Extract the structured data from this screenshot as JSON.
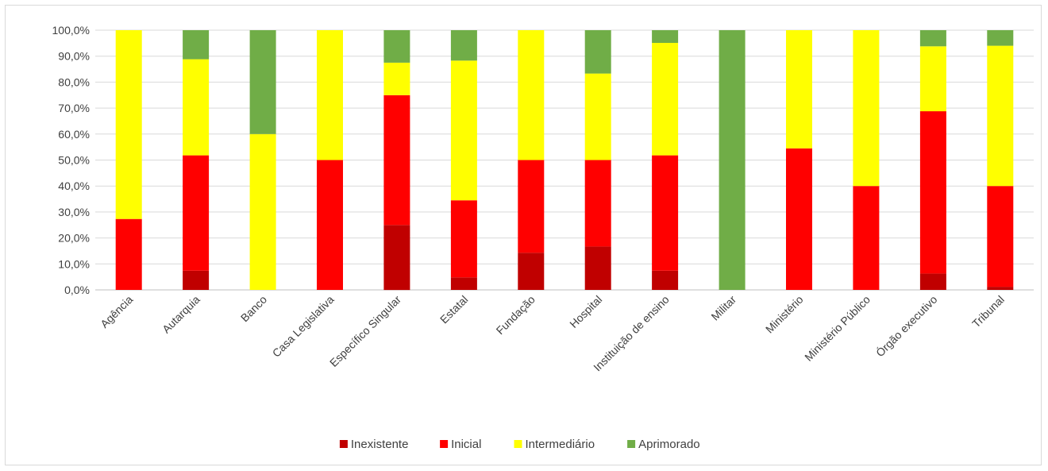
{
  "chart_data": {
    "type": "bar",
    "stacked": true,
    "title": "",
    "xlabel": "",
    "ylabel": "",
    "ylim": [
      0,
      100
    ],
    "y_ticks": [
      "0,0%",
      "10,0%",
      "20,0%",
      "30,0%",
      "40,0%",
      "50,0%",
      "60,0%",
      "70,0%",
      "80,0%",
      "90,0%",
      "100,0%"
    ],
    "grid": true,
    "legend_position": "bottom",
    "categories": [
      "Agência",
      "Autarquia",
      "Banco",
      "Casa Legislativa",
      "Específico Singular",
      "Estatal",
      "Fundação",
      "Hospital",
      "Instituição de ensino",
      "Militar",
      "Ministério",
      "Ministério Público",
      "Órgão executivo",
      "Tribunal"
    ],
    "series": [
      {
        "name": "Inexistente",
        "color": "#c00000",
        "values": [
          0,
          7.4,
          0,
          0,
          25.0,
          4.8,
          14.3,
          16.7,
          7.4,
          0,
          0,
          0,
          6.3,
          1.2
        ]
      },
      {
        "name": "Inicial",
        "color": "#ff0000",
        "values": [
          27.3,
          44.4,
          0,
          50.0,
          50.0,
          29.7,
          35.7,
          33.3,
          44.4,
          0,
          54.5,
          40.0,
          62.5,
          38.8
        ]
      },
      {
        "name": "Intermediário",
        "color": "#ffff00",
        "values": [
          72.7,
          37.0,
          60.0,
          50.0,
          12.5,
          53.8,
          50.0,
          33.3,
          43.3,
          0,
          45.5,
          60.0,
          25.0,
          54.0
        ]
      },
      {
        "name": "Aprimorado",
        "color": "#70ad47",
        "values": [
          0,
          11.2,
          40.0,
          0,
          12.5,
          11.7,
          0,
          16.7,
          4.9,
          100.0,
          0,
          0,
          6.2,
          6.0
        ]
      }
    ]
  }
}
